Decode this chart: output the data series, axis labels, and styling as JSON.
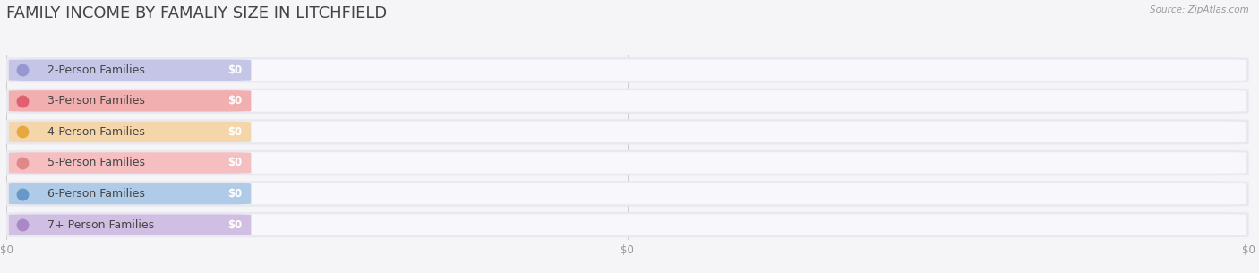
{
  "title": "FAMILY INCOME BY FAMALIY SIZE IN LITCHFIELD",
  "source": "Source: ZipAtlas.com",
  "categories": [
    "2-Person Families",
    "3-Person Families",
    "4-Person Families",
    "5-Person Families",
    "6-Person Families",
    "7+ Person Families"
  ],
  "values": [
    0,
    0,
    0,
    0,
    0,
    0
  ],
  "bar_colors": [
    "#b0b0e0",
    "#f09090",
    "#f5c888",
    "#f4a8a8",
    "#90b8e0",
    "#c0a8d8"
  ],
  "dot_colors": [
    "#9898d0",
    "#e06070",
    "#e8a840",
    "#e08888",
    "#6898c8",
    "#aa88c8"
  ],
  "bg_color": "#f5f5f8",
  "row_bg_color": "#e8e8f0",
  "bar_bg_color": "#f0f0f5",
  "xlim": [
    0,
    1
  ],
  "xtick_labels": [
    "$0",
    "$0",
    "$0"
  ],
  "xtick_positions": [
    0.0,
    0.5,
    1.0
  ],
  "title_fontsize": 13,
  "label_fontsize": 9,
  "value_fontsize": 8.5,
  "colored_bar_width": 0.195
}
